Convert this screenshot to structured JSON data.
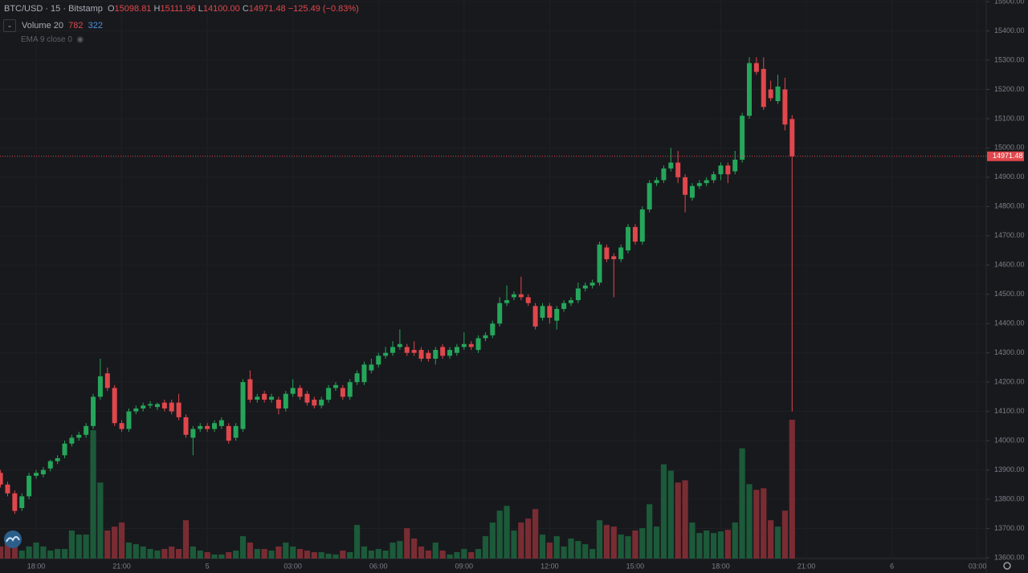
{
  "header": {
    "symbol": "BTC/USD · 15 · Bitstamp",
    "open_label": "O",
    "open": "15098.81",
    "high_label": "H",
    "high": "15111.96",
    "low_label": "L",
    "low": "14100.00",
    "close_label": "C",
    "close": "14971.48",
    "change": "−125.49 (−0.83%)",
    "volume_study": "Volume 20",
    "volume_value": "782",
    "volume_ma": "322",
    "ema_study": "EMA 9 close 0"
  },
  "chart_data": {
    "type": "candlestick",
    "up_color": "#26a65b",
    "down_color": "#e0474c",
    "volume_up_color": "#1c5a3a",
    "volume_down_color": "#7a2c33",
    "grid": true,
    "categories": [
      null,
      null,
      null,
      null,
      null,
      "18:00",
      null,
      null,
      null,
      null,
      null,
      null,
      null,
      null,
      null,
      null,
      null,
      "21:00",
      null,
      null,
      null,
      null,
      null,
      null,
      null,
      null,
      null,
      null,
      null,
      "5",
      null,
      null,
      null,
      null,
      null,
      null,
      null,
      null,
      null,
      null,
      null,
      "03:00",
      null,
      null,
      null,
      null,
      null,
      null,
      null,
      null,
      null,
      null,
      null,
      "06:00",
      null,
      null,
      null,
      null,
      null,
      null,
      null,
      null,
      null,
      null,
      null,
      "09:00",
      null,
      null,
      null,
      null,
      null,
      null,
      null,
      null,
      null,
      null,
      null,
      "12:00",
      null,
      null,
      null,
      null,
      null,
      null,
      null,
      null,
      null,
      null,
      null,
      "15:00",
      null,
      null,
      null,
      null,
      null,
      null,
      null,
      null,
      null,
      null,
      null,
      "18:00",
      null,
      null,
      null,
      null,
      null,
      null,
      null,
      null,
      null,
      null,
      null,
      "21:00",
      null,
      null,
      null,
      null,
      null,
      null,
      null,
      null,
      null,
      null,
      null,
      "6",
      null,
      null,
      null,
      null,
      null,
      null,
      null,
      null,
      null,
      null,
      null,
      "03:00",
      null
    ],
    "ohlc": [
      [
        13890,
        13900,
        13840,
        13850
      ],
      [
        13850,
        13860,
        13810,
        13820
      ],
      [
        13820,
        13830,
        13750,
        13760
      ],
      [
        13770,
        13820,
        13760,
        13810
      ],
      [
        13810,
        13890,
        13800,
        13880
      ],
      [
        13880,
        13900,
        13870,
        13890
      ],
      [
        13885,
        13910,
        13875,
        13900
      ],
      [
        13905,
        13935,
        13895,
        13930
      ],
      [
        13930,
        13950,
        13920,
        13940
      ],
      [
        13950,
        14000,
        13940,
        13990
      ],
      [
        13990,
        14020,
        13980,
        14010
      ],
      [
        14010,
        14030,
        14000,
        14020
      ],
      [
        14020,
        14060,
        14010,
        14050
      ],
      [
        14050,
        14160,
        14040,
        14150
      ],
      [
        14150,
        14280,
        14140,
        14220
      ],
      [
        14230,
        14250,
        14170,
        14180
      ],
      [
        14180,
        14190,
        14050,
        14060
      ],
      [
        14060,
        14070,
        14030,
        14040
      ],
      [
        14040,
        14110,
        14030,
        14100
      ],
      [
        14100,
        14120,
        14090,
        14110
      ],
      [
        14110,
        14130,
        14100,
        14120
      ],
      [
        14120,
        14135,
        14110,
        14125
      ],
      [
        14115,
        14130,
        14105,
        14125
      ],
      [
        14130,
        14140,
        14100,
        14110
      ],
      [
        14130,
        14140,
        14090,
        14100
      ],
      [
        14130,
        14160,
        14070,
        14080
      ],
      [
        14080,
        14090,
        14010,
        14020
      ],
      [
        14010,
        14050,
        13950,
        14040
      ],
      [
        14040,
        14060,
        14030,
        14050
      ],
      [
        14050,
        14060,
        14030,
        14040
      ],
      [
        14040,
        14070,
        14030,
        14060
      ],
      [
        14050,
        14080,
        14040,
        14070
      ],
      [
        14050,
        14060,
        13990,
        14000
      ],
      [
        14010,
        14060,
        14000,
        14050
      ],
      [
        14040,
        14210,
        14030,
        14200
      ],
      [
        14210,
        14240,
        14130,
        14140
      ],
      [
        14140,
        14160,
        14130,
        14150
      ],
      [
        14160,
        14170,
        14130,
        14140
      ],
      [
        14140,
        14160,
        14130,
        14150
      ],
      [
        14140,
        14150,
        14090,
        14110
      ],
      [
        14110,
        14170,
        14100,
        14160
      ],
      [
        14160,
        14210,
        14150,
        14180
      ],
      [
        14180,
        14190,
        14140,
        14150
      ],
      [
        14160,
        14170,
        14120,
        14130
      ],
      [
        14140,
        14150,
        14110,
        14120
      ],
      [
        14120,
        14150,
        14110,
        14140
      ],
      [
        14140,
        14190,
        14130,
        14180
      ],
      [
        14180,
        14200,
        14170,
        14190
      ],
      [
        14180,
        14190,
        14140,
        14150
      ],
      [
        14150,
        14210,
        14140,
        14200
      ],
      [
        14200,
        14240,
        14190,
        14230
      ],
      [
        14200,
        14270,
        14190,
        14260
      ],
      [
        14240,
        14280,
        14230,
        14260
      ],
      [
        14260,
        14300,
        14250,
        14290
      ],
      [
        14290,
        14320,
        14280,
        14300
      ],
      [
        14300,
        14340,
        14290,
        14320
      ],
      [
        14320,
        14380,
        14310,
        14330
      ],
      [
        14320,
        14330,
        14290,
        14300
      ],
      [
        14310,
        14340,
        14290,
        14300
      ],
      [
        14310,
        14320,
        14270,
        14280
      ],
      [
        14300,
        14310,
        14270,
        14280
      ],
      [
        14280,
        14320,
        14260,
        14310
      ],
      [
        14320,
        14330,
        14280,
        14290
      ],
      [
        14290,
        14320,
        14280,
        14310
      ],
      [
        14300,
        14330,
        14290,
        14320
      ],
      [
        14320,
        14370,
        14310,
        14330
      ],
      [
        14330,
        14340,
        14310,
        14320
      ],
      [
        14310,
        14360,
        14300,
        14350
      ],
      [
        14350,
        14370,
        14340,
        14360
      ],
      [
        14360,
        14410,
        14350,
        14400
      ],
      [
        14400,
        14490,
        14390,
        14470
      ],
      [
        14470,
        14530,
        14460,
        14480
      ],
      [
        14490,
        14510,
        14480,
        14500
      ],
      [
        14500,
        14560,
        14480,
        14490
      ],
      [
        14490,
        14500,
        14460,
        14470
      ],
      [
        14460,
        14470,
        14380,
        14390
      ],
      [
        14420,
        14470,
        14410,
        14460
      ],
      [
        14460,
        14470,
        14400,
        14420
      ],
      [
        14410,
        14460,
        14380,
        14450
      ],
      [
        14450,
        14480,
        14440,
        14470
      ],
      [
        14470,
        14490,
        14460,
        14480
      ],
      [
        14480,
        14540,
        14470,
        14520
      ],
      [
        14520,
        14540,
        14510,
        14530
      ],
      [
        14530,
        14550,
        14520,
        14540
      ],
      [
        14540,
        14680,
        14530,
        14670
      ],
      [
        14660,
        14670,
        14610,
        14620
      ],
      [
        14630,
        14640,
        14490,
        14620
      ],
      [
        14620,
        14670,
        14610,
        14660
      ],
      [
        14650,
        14740,
        14640,
        14730
      ],
      [
        14730,
        14740,
        14670,
        14680
      ],
      [
        14680,
        14800,
        14670,
        14790
      ],
      [
        14790,
        14890,
        14780,
        14880
      ],
      [
        14880,
        14900,
        14870,
        14890
      ],
      [
        14890,
        14940,
        14880,
        14930
      ],
      [
        14930,
        15000,
        14920,
        14950
      ],
      [
        14950,
        14990,
        14880,
        14900
      ],
      [
        14900,
        14910,
        14780,
        14840
      ],
      [
        14830,
        14880,
        14820,
        14870
      ],
      [
        14870,
        14890,
        14860,
        14880
      ],
      [
        14880,
        14900,
        14870,
        14890
      ],
      [
        14890,
        14920,
        14880,
        14910
      ],
      [
        14910,
        14950,
        14890,
        14940
      ],
      [
        14940,
        14950,
        14880,
        14910
      ],
      [
        14920,
        14990,
        14910,
        14960
      ],
      [
        14960,
        15120,
        14950,
        15110
      ],
      [
        15110,
        15310,
        15100,
        15290
      ],
      [
        15290,
        15310,
        15250,
        15260
      ],
      [
        15270,
        15310,
        15130,
        15140
      ],
      [
        15200,
        15230,
        15160,
        15170
      ],
      [
        15160,
        15250,
        15150,
        15210
      ],
      [
        15200,
        15240,
        15060,
        15080
      ],
      [
        15098.81,
        15111.96,
        14100,
        14971.48
      ],
      null,
      null,
      null,
      null,
      null,
      null,
      null,
      null,
      null,
      null,
      null,
      null,
      null,
      null,
      null,
      null,
      null,
      null,
      null,
      null,
      null,
      null,
      null,
      null,
      null,
      null,
      null
    ],
    "volume": [
      68,
      113,
      90,
      45,
      68,
      90,
      68,
      45,
      54,
      54,
      158,
      135,
      135,
      723,
      428,
      158,
      180,
      203,
      90,
      81,
      68,
      54,
      45,
      54,
      68,
      54,
      216,
      68,
      45,
      36,
      23,
      23,
      36,
      45,
      126,
      90,
      54,
      54,
      45,
      68,
      90,
      68,
      54,
      45,
      36,
      36,
      27,
      23,
      45,
      36,
      189,
      68,
      45,
      54,
      45,
      90,
      99,
      171,
      113,
      68,
      45,
      90,
      45,
      23,
      36,
      54,
      36,
      54,
      126,
      203,
      270,
      297,
      158,
      203,
      225,
      279,
      135,
      90,
      126,
      68,
      113,
      99,
      81,
      54,
      216,
      189,
      180,
      135,
      126,
      158,
      171,
      306,
      180,
      531,
      495,
      428,
      441,
      203,
      144,
      158,
      144,
      153,
      162,
      203,
      621,
      419,
      387,
      396,
      216,
      180,
      270,
      782,
      null,
      null,
      null,
      null,
      null,
      null,
      null,
      null,
      null,
      null,
      null,
      null,
      null,
      null,
      null,
      null,
      null,
      null,
      null,
      null,
      null,
      null,
      null,
      null,
      null,
      null,
      null
    ],
    "ylim": [
      13600,
      15500
    ],
    "yticks": [
      {
        "value": 13600,
        "label": "13600.00"
      },
      {
        "value": 13700,
        "label": "13700.00"
      },
      {
        "value": 13800,
        "label": "13800.00"
      },
      {
        "value": 13900,
        "label": "13900.00"
      },
      {
        "value": 14000,
        "label": "14000.00"
      },
      {
        "value": 14100,
        "label": "14100.00"
      },
      {
        "value": 14200,
        "label": "14200.00"
      },
      {
        "value": 14300,
        "label": "14300.00"
      },
      {
        "value": 14400,
        "label": "14400.00"
      },
      {
        "value": 14500,
        "label": "14500.00"
      },
      {
        "value": 14600,
        "label": "14600.00"
      },
      {
        "value": 14700,
        "label": "14700.00"
      },
      {
        "value": 14800,
        "label": "14800.00"
      },
      {
        "value": 14900,
        "label": "14900.00"
      },
      {
        "value": 15000,
        "label": "15000.00"
      },
      {
        "value": 15100,
        "label": "15100.00"
      },
      {
        "value": 15200,
        "label": "15200.00"
      },
      {
        "value": 15300,
        "label": "15300.00"
      },
      {
        "value": 15400,
        "label": "15400.00"
      },
      {
        "value": 15500,
        "label": "15500.00"
      }
    ],
    "last_price": {
      "value": 14971.48,
      "label": "14971.48"
    }
  }
}
